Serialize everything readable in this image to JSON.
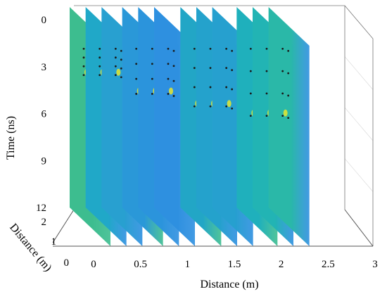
{
  "chart_data": {
    "type": "3d-slice",
    "title": "",
    "xlabel": "Distance (m)",
    "ylabel": "Distance (m)",
    "zlabel": "Time (ns)",
    "x_ticks": [
      "0",
      "0.5",
      "1",
      "1.5",
      "2",
      "2.5",
      "3"
    ],
    "y_ticks": [
      "0",
      "1",
      "2"
    ],
    "z_ticks": [
      "0",
      "3",
      "6",
      "9",
      "12"
    ],
    "xlim": [
      0,
      3
    ],
    "ylim": [
      0,
      2
    ],
    "zlim": [
      0,
      12
    ],
    "z_reversed": true,
    "colormap": "parula",
    "colors": {
      "slice_green": "#3dbd8f",
      "slice_teal": "#20a8c8",
      "slice_blue": "#2d8fe0",
      "hot_yellow": "#e6e62e",
      "dots": "#1a1a1a",
      "box": "#555555"
    },
    "slices": [
      {
        "x": 0.0,
        "base": "#3dbd8f",
        "hyperbola_apex_ns": 1.5,
        "hyperbola_tail_ns": 3.0
      },
      {
        "x": 0.17,
        "base": "#20a8c8",
        "hyperbola_apex_ns": 1.5,
        "hyperbola_tail_ns": 3.0
      },
      {
        "x": 0.34,
        "base": "#28a0d0",
        "hyperbola_apex_ns": 1.5,
        "hyperbola_tail_ns": 3.0
      },
      {
        "x": 0.56,
        "base": "#2a98d8",
        "hyperbola_apex_ns": 1.5,
        "hyperbola_tail_ns": 4.2
      },
      {
        "x": 0.73,
        "base": "#2b94dc",
        "hyperbola_apex_ns": 1.5,
        "hyperbola_tail_ns": 4.2
      },
      {
        "x": 0.9,
        "base": "#2e90e0",
        "hyperbola_apex_ns": 1.5,
        "hyperbola_tail_ns": 4.2
      },
      {
        "x": 1.18,
        "base": "#22a6c6",
        "hyperbola_apex_ns": 1.5,
        "hyperbola_tail_ns": 5.0
      },
      {
        "x": 1.35,
        "base": "#24a2cc",
        "hyperbola_apex_ns": 1.5,
        "hyperbola_tail_ns": 5.0
      },
      {
        "x": 1.52,
        "base": "#26a0cf",
        "hyperbola_apex_ns": 1.5,
        "hyperbola_tail_ns": 5.0
      },
      {
        "x": 1.78,
        "base": "#1fb0bc",
        "hyperbola_apex_ns": 1.5,
        "hyperbola_tail_ns": 5.6
      },
      {
        "x": 1.95,
        "base": "#22b4b4",
        "hyperbola_apex_ns": 1.5,
        "hyperbola_tail_ns": 5.6
      },
      {
        "x": 2.12,
        "base": "#2ab8a8",
        "hyperbola_apex_ns": 1.5,
        "hyperbola_tail_ns": 5.6
      }
    ]
  }
}
